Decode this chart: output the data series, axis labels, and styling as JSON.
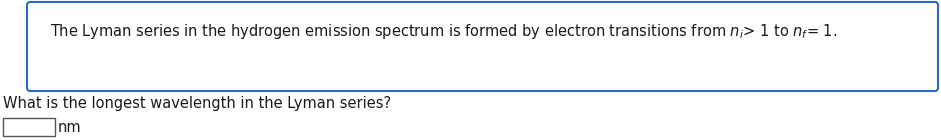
{
  "line1": "The Lyman series in the hydrogen emission spectrum is formed by electron transitions from $n_i$> 1 to $n_f$= 1.",
  "question_text": "What is the longest wavelength in the Lyman series?",
  "unit_text": "nm",
  "bg_color": "#ffffff",
  "box_border_color": "#2a6bbf",
  "text_color": "#1a1a1a",
  "font_size": 10.5,
  "question_font_size": 10.5
}
